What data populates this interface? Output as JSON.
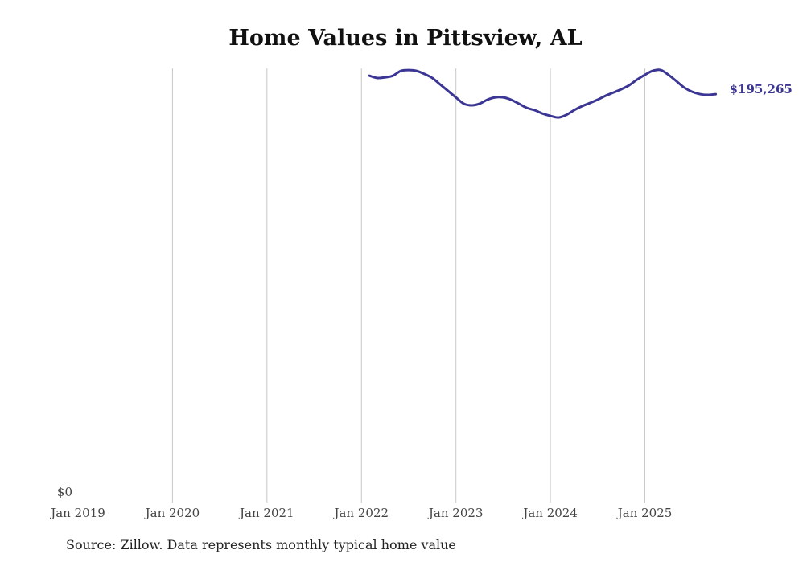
{
  "chart_data": {
    "type": "line",
    "title": "Home Values in Pittsview, AL",
    "source": "Source: Zillow. Data represents monthly typical home value",
    "xlabel": "",
    "ylabel": "",
    "ylim": [
      0,
      207600
    ],
    "y_tick_labels": [
      {
        "value": 0,
        "label": "$0"
      }
    ],
    "x_ticks": [
      {
        "label": "Jan 2019",
        "month_index": 0
      },
      {
        "label": "Jan 2020",
        "month_index": 12
      },
      {
        "label": "Jan 2021",
        "month_index": 24
      },
      {
        "label": "Jan 2022",
        "month_index": 36
      },
      {
        "label": "Jan 2023",
        "month_index": 48
      },
      {
        "label": "Jan 2024",
        "month_index": 60
      },
      {
        "label": "Jan 2025",
        "month_index": 72
      }
    ],
    "x_range_months": [
      0,
      81
    ],
    "grid": "vertical",
    "line_color": "#3b3594",
    "end_label": "$195,265",
    "series": [
      {
        "name": "Typical home value",
        "start": "Feb 2022",
        "start_month_index": 37,
        "values": [
          204100,
          203000,
          203300,
          204100,
          206400,
          206800,
          206400,
          204900,
          203000,
          199900,
          196800,
          193700,
          190700,
          189900,
          190700,
          192600,
          193700,
          193700,
          192600,
          190700,
          188700,
          187600,
          186000,
          184900,
          184100,
          185300,
          187600,
          189500,
          191000,
          192600,
          194500,
          196000,
          197600,
          199500,
          202200,
          204500,
          206400,
          206800,
          204500,
          201500,
          198400,
          196400,
          195265,
          194900,
          195265
        ]
      }
    ]
  }
}
